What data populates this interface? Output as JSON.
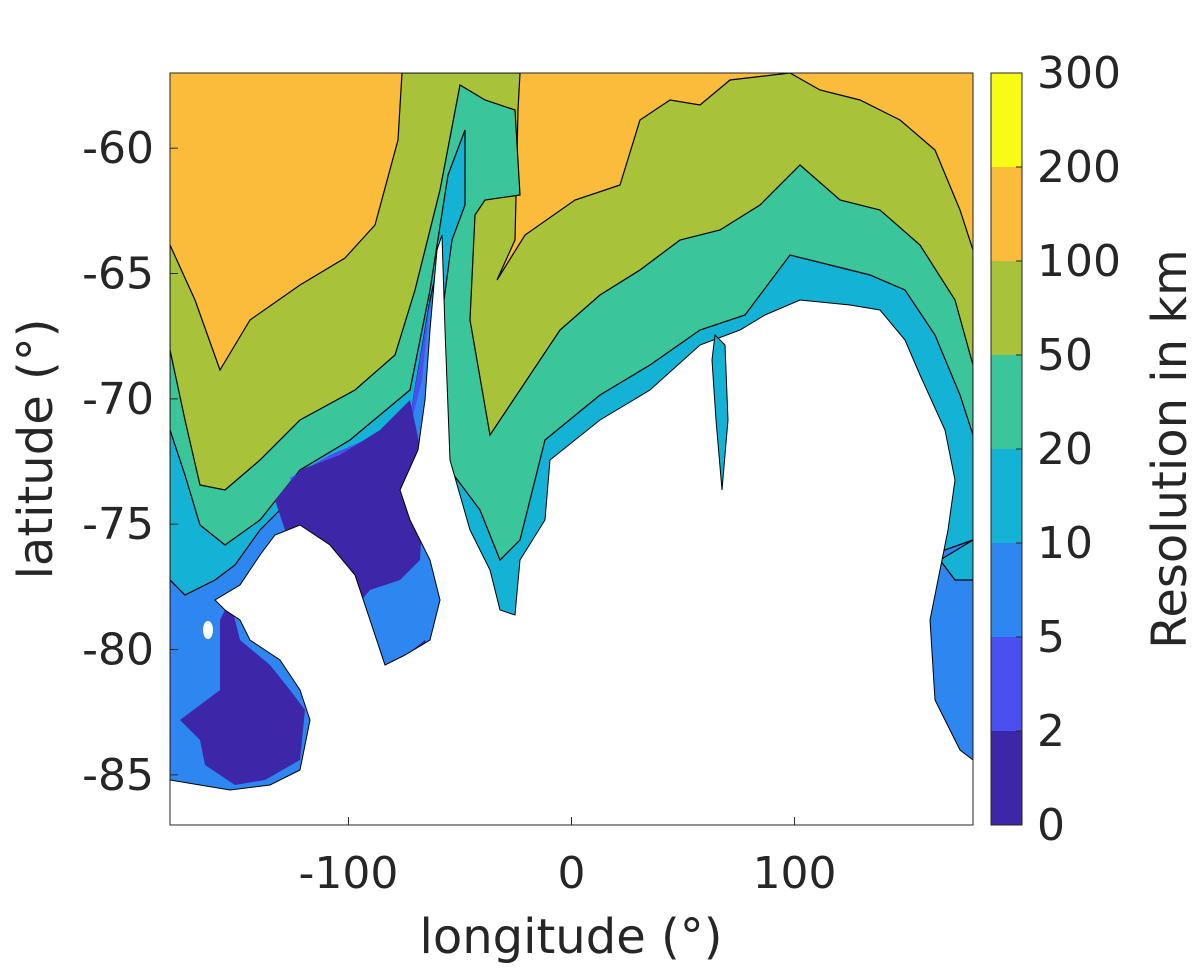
{
  "chart_data": {
    "type": "heatmap",
    "subtype": "filled-contour map",
    "xlabel": "longitude (°)",
    "ylabel": "latitude (°)",
    "xlim": [
      -180,
      180
    ],
    "ylim": [
      -87,
      -57
    ],
    "xticks": [
      -100,
      0,
      100
    ],
    "yticks": [
      -60,
      -65,
      -70,
      -75,
      -80,
      -85
    ],
    "colorbar": {
      "label": "Resolution in km",
      "levels": [
        0,
        2,
        5,
        10,
        20,
        50,
        100,
        200,
        300
      ],
      "colors": [
        "#3e26a8",
        "#4a4ff0",
        "#2e87f0",
        "#14b3d6",
        "#3ac69a",
        "#a8c33a",
        "#fbbc3c",
        "#f9fb15"
      ]
    },
    "masked_region": "Antarctica (white)",
    "grid": false
  }
}
